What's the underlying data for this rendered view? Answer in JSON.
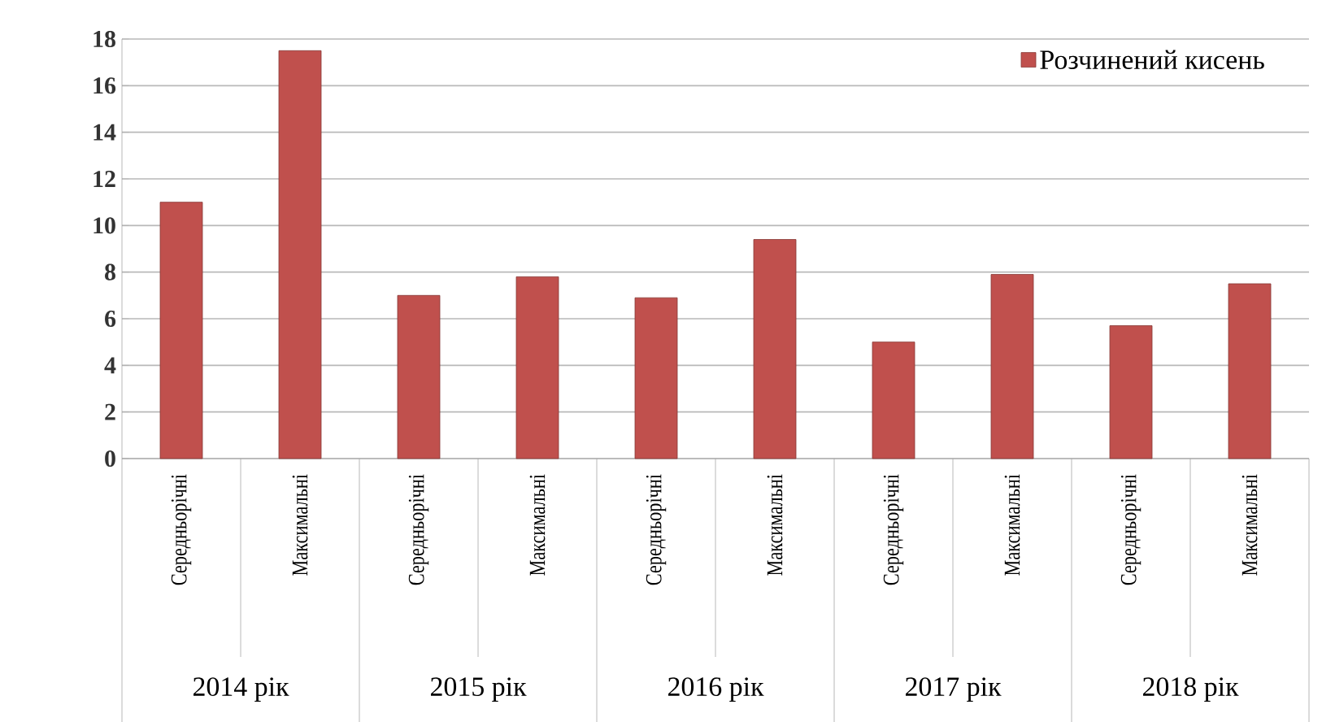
{
  "chart_data": {
    "type": "bar",
    "categories": [
      "Середньорічні",
      "Максимальні",
      "Середньорічні",
      "Максимальні",
      "Середньорічні",
      "Максимальні",
      "Середньорічні",
      "Максимальні",
      "Середньорічні",
      "Максимальні"
    ],
    "series": [
      {
        "name": "Розчинений кисень",
        "color": "#c0504d",
        "values": [
          11.0,
          17.5,
          7.0,
          7.8,
          6.9,
          9.4,
          5.0,
          7.9,
          5.7,
          7.5
        ]
      }
    ],
    "ylim": [
      0,
      18
    ],
    "yticks": [
      0,
      2,
      4,
      6,
      8,
      10,
      12,
      14,
      16,
      18
    ],
    "annotations": [
      "2014 рік",
      "2015 рік",
      "2016 рік",
      "2017 рік",
      "2018 рік"
    ],
    "grid": "y",
    "legend": "top right"
  }
}
